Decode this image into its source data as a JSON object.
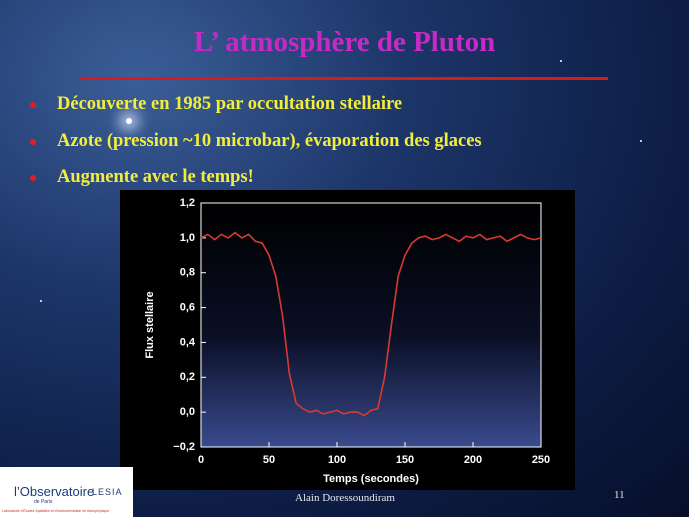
{
  "slide": {
    "title": "L’ atmosphère de Pluton",
    "bullets": [
      "Découverte en 1985 par occultation stellaire",
      "Azote (pression ~10 microbar), évaporation des glaces",
      "Augmente avec le temps!"
    ],
    "footer": {
      "author": "Alain Doressoundiram",
      "page": "11",
      "logo": {
        "name": "l’Observatoire",
        "sub": "de Paris",
        "lab": "LESIA",
        "caption": "Laboratoire d’Études Spatiales et d’Instrumentation en Astrophysique"
      }
    }
  },
  "chart_data": {
    "type": "line",
    "xlabel": "Temps (secondes)",
    "ylabel": "Flux stellaire",
    "color": "#d83a30",
    "x": [
      0,
      5,
      10,
      15,
      20,
      25,
      30,
      35,
      40,
      45,
      50,
      55,
      60,
      65,
      70,
      75,
      80,
      85,
      90,
      95,
      100,
      105,
      110,
      115,
      120,
      125,
      130,
      135,
      140,
      145,
      150,
      155,
      160,
      165,
      170,
      175,
      180,
      185,
      190,
      195,
      200,
      205,
      210,
      215,
      220,
      225,
      230,
      235,
      240,
      245,
      250
    ],
    "values": [
      1.0,
      1.02,
      0.99,
      1.02,
      1.0,
      1.03,
      1.0,
      1.02,
      0.98,
      0.97,
      0.9,
      0.78,
      0.55,
      0.22,
      0.05,
      0.02,
      0.0,
      0.01,
      -0.01,
      0.0,
      0.01,
      -0.01,
      0.0,
      0.0,
      -0.02,
      0.01,
      0.02,
      0.2,
      0.5,
      0.78,
      0.9,
      0.97,
      1.0,
      1.01,
      0.99,
      1.0,
      1.02,
      1.0,
      0.98,
      1.01,
      1.0,
      1.02,
      0.99,
      1.0,
      1.01,
      0.98,
      1.0,
      1.02,
      1.0,
      0.99,
      1.0
    ],
    "xlim": [
      0,
      250
    ],
    "xticks": [
      0,
      50,
      100,
      150,
      200,
      250
    ],
    "ylim": [
      -0.2,
      1.2
    ],
    "yticks": [
      {
        "value": -0.2,
        "label": "−0,2"
      },
      {
        "value": 0,
        "label": "0,0"
      },
      {
        "value": 0.2,
        "label": "0,2"
      },
      {
        "value": 0.4,
        "label": "0,4"
      },
      {
        "value": 0.6,
        "label": "0,6"
      },
      {
        "value": 0.8,
        "label": "0,8"
      },
      {
        "value": 1.0,
        "label": "1,0"
      },
      {
        "value": 1.2,
        "label": "1,2"
      }
    ]
  }
}
